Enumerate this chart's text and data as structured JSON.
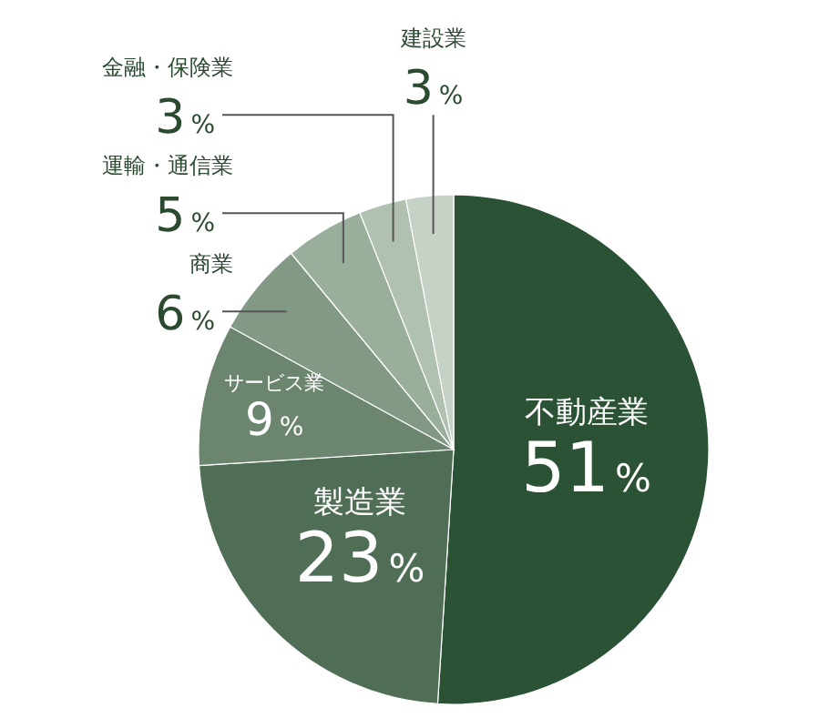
{
  "chart_data": {
    "type": "pie",
    "categories": [
      "不動産業",
      "製造業",
      "サービス業",
      "商業",
      "運輸・通信業",
      "金融・保険業",
      "建設業"
    ],
    "values": [
      51,
      23,
      9,
      6,
      5,
      3,
      3
    ],
    "colors": [
      "#2b5234",
      "#4f6e55",
      "#6b856f",
      "#829986",
      "#9aae9c",
      "#b0c0b1",
      "#c6d2c6"
    ],
    "value_labels": [
      "51%",
      "23%",
      "9%",
      "6%",
      "5%",
      "3%",
      "3%"
    ]
  }
}
